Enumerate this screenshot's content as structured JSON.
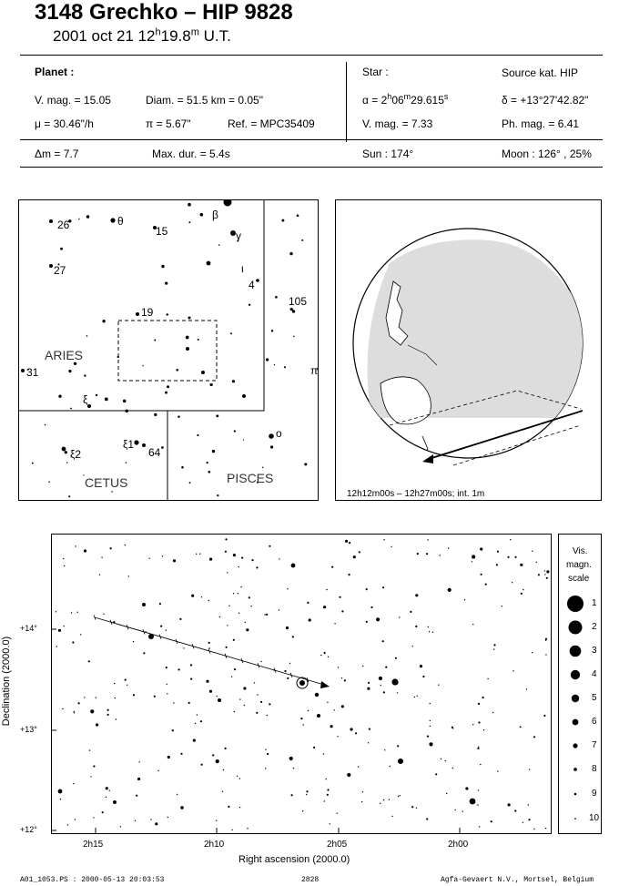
{
  "header": {
    "title": "3148 Grechko  –  HIP 9828",
    "date_main": "2001 oct 21  12",
    "date_h": "h",
    "date_min": "19.8",
    "date_m": "m",
    "date_ut": " U.T."
  },
  "planet": {
    "heading": "Planet :",
    "vmag": "V. mag. = 15.05",
    "diam": "Diam. = 51.5 km = 0.05\"",
    "mu": "μ =  30.46\"/h",
    "pi": "π =  5.67\"",
    "ref": "Ref. = MPC35409"
  },
  "star": {
    "heading": "Star :",
    "source": "Source kat.  HIP",
    "alpha_pre": "α =  2",
    "alpha_h": "h",
    "alpha_mid": "06",
    "alpha_m": "m",
    "alpha_sec": "29.615",
    "alpha_s": "s",
    "delta": "δ = +13°27'42.82\"",
    "vmag": "V. mag. =  7.33",
    "phmag": "Ph. mag. =  6.41"
  },
  "summary": {
    "dm": "Δm = 7.7",
    "maxdur": "Max. dur. = 5.4s",
    "sun": "Sun : 174°",
    "moon": "Moon : 126° , 25%"
  },
  "constellation_map": {
    "labels": {
      "aries": "ARIES",
      "cetus": "CETUS",
      "pisces": "PISCES"
    },
    "star_labels": [
      "26",
      "θ",
      "15",
      "β",
      "γ",
      "27",
      "ι",
      "4",
      "105",
      "19",
      "31",
      "π",
      "ξ",
      "ο",
      "ξ1",
      "64",
      "ξ2"
    ]
  },
  "globe": {
    "caption": "12h12m00s – 12h27m00s; int.  1m"
  },
  "star_chart": {
    "y_label": "Declination (2000.0)",
    "x_label": "Right ascension (2000.0)",
    "y_ticks": [
      "+14°",
      "+13°",
      "+12°"
    ],
    "x_ticks": [
      "2h15",
      "2h10",
      "2h05",
      "2h00"
    ]
  },
  "mag_scale": {
    "title_line1": "Vis.",
    "title_line2": "magn.",
    "title_line3": "scale",
    "levels": [
      "1",
      "2",
      "3",
      "4",
      "5",
      "6",
      "7",
      "8",
      "9",
      "10"
    ]
  },
  "footer": {
    "left": "A01_1053.PS : 2000-05-13 20:03:53",
    "center": "2828",
    "right": "Agfa-Gevaert N.V., Mortsel, Belgium"
  }
}
